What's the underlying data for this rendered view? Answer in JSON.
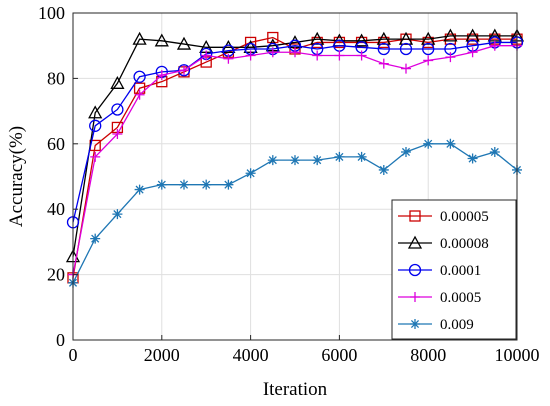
{
  "chart_data": {
    "type": "line",
    "title": "",
    "xlabel": "Iteration",
    "ylabel": "Accuracy(%)",
    "xlim": [
      0,
      10000
    ],
    "ylim": [
      0,
      100
    ],
    "xticks": [
      0,
      2000,
      4000,
      6000,
      8000,
      10000
    ],
    "yticks": [
      0,
      20,
      40,
      60,
      80,
      100
    ],
    "grid": true,
    "legend_position": "bottom-right",
    "x": [
      0,
      500,
      1000,
      1500,
      2000,
      2500,
      3000,
      3500,
      4000,
      4500,
      5000,
      5500,
      6000,
      6500,
      7000,
      7500,
      8000,
      8500,
      9000,
      9500,
      10000
    ],
    "series": [
      {
        "name": "0.00005",
        "color": "#cc0000",
        "marker": "square",
        "values": [
          19,
          59.5,
          65,
          77,
          79,
          82,
          85,
          88,
          91,
          92.5,
          89,
          91,
          91,
          91,
          91,
          92,
          91,
          92,
          92,
          92,
          92
        ]
      },
      {
        "name": "0.00008",
        "color": "#000000",
        "marker": "triangle",
        "values": [
          25.5,
          69.5,
          78.5,
          92,
          91.5,
          90.5,
          89.5,
          89.5,
          89.5,
          90,
          91,
          92,
          91.5,
          91.5,
          92,
          92,
          92,
          93,
          93,
          93,
          93
        ]
      },
      {
        "name": "0.0001",
        "color": "#0000ee",
        "marker": "circle",
        "values": [
          36,
          65.5,
          70.5,
          80.5,
          82,
          82.5,
          87.5,
          88.5,
          89,
          89,
          90,
          89,
          90,
          89.5,
          89,
          89,
          89,
          89,
          90,
          91,
          91
        ]
      },
      {
        "name": "0.0005",
        "color": "#dd00dd",
        "marker": "plus",
        "values": [
          20,
          56,
          63,
          75,
          81,
          82.5,
          87,
          86,
          87,
          88,
          88,
          87,
          87,
          87,
          84.5,
          83,
          85.5,
          86.5,
          88,
          90,
          90
        ]
      },
      {
        "name": "0.009",
        "color": "#1f77b4",
        "marker": "asterisk",
        "values": [
          17.5,
          31,
          38.5,
          46,
          47.5,
          47.5,
          47.5,
          47.5,
          51,
          55,
          55,
          55,
          56,
          56,
          52,
          57.5,
          60,
          60,
          55.5,
          57.5,
          52
        ]
      }
    ]
  }
}
